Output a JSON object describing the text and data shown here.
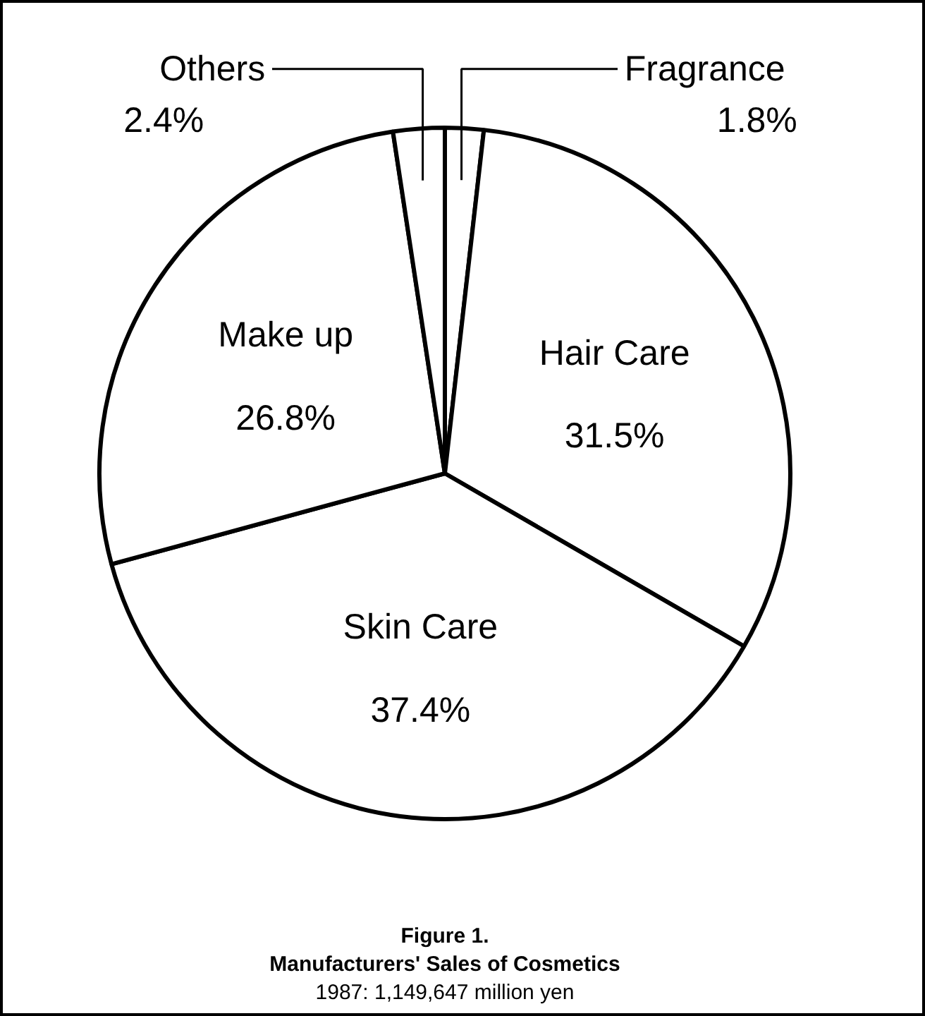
{
  "chart_data": {
    "type": "pie",
    "title": "Figure 1.",
    "subtitle": "Manufacturers' Sales of Cosmetics",
    "annotations": [
      "1987: 1,149,647 million yen"
    ],
    "categories": [
      "Fragrance",
      "Hair Care",
      "Skin Care",
      "Make up",
      "Others"
    ],
    "values": [
      1.8,
      31.5,
      37.4,
      26.8,
      2.4
    ],
    "value_labels": [
      "1.8%",
      "31.5%",
      "37.4%",
      "26.8%",
      "2.4%"
    ],
    "colors": [
      "#ffffff",
      "#ffffff",
      "#ffffff",
      "#ffffff",
      "#ffffff"
    ]
  }
}
